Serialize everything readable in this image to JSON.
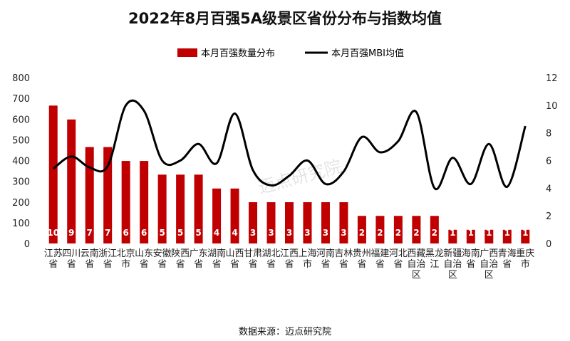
{
  "chart_data": {
    "type": "bar+line",
    "title": "2022年8月百强5A级景区省份分布与指数均值",
    "source": "数据来源：迈点研究院",
    "watermark": "迈点研究院",
    "bar_color": "#c00000",
    "line_color": "#000000",
    "legend": [
      "本月百强数量分布",
      "本月百强MBI均值"
    ],
    "y_left": {
      "ticks": [
        0,
        100,
        200,
        300,
        400,
        500,
        600,
        700,
        800
      ],
      "range": [
        0,
        800
      ]
    },
    "y_right": {
      "ticks": [
        0,
        2,
        4,
        6,
        8,
        10,
        12
      ],
      "range": [
        0,
        12
      ]
    },
    "categories": [
      "江苏省",
      "四川省",
      "云南省",
      "浙江省",
      "北京市",
      "山东省",
      "安徽省",
      "陕西省",
      "广东省",
      "湖南省",
      "山西省",
      "甘肃省",
      "湖北省",
      "江西省",
      "上海市",
      "河南省",
      "吉林省",
      "贵州省",
      "福建省",
      "河北省",
      "西藏自治区",
      "黑龙江",
      "新疆自治区",
      "海南省",
      "广西自治区",
      "青海省",
      "重庆市"
    ],
    "counts": [
      10,
      9,
      7,
      7,
      6,
      6,
      5,
      5,
      5,
      4,
      4,
      3,
      3,
      3,
      3,
      3,
      3,
      2,
      2,
      2,
      2,
      2,
      1,
      1,
      1,
      1,
      1
    ],
    "count_labels": [
      "10",
      "9",
      "7",
      "7",
      "6",
      "6",
      "5",
      "5",
      "5",
      "4",
      "4",
      "3",
      "3",
      "3",
      "3",
      "3",
      "3",
      "2",
      "2",
      "2",
      "2",
      "2",
      "1",
      "1",
      "1",
      "1",
      "1"
    ],
    "bar_values": [
      665,
      598,
      465,
      465,
      398,
      398,
      332,
      332,
      332,
      265,
      265,
      199,
      199,
      199,
      199,
      199,
      199,
      133,
      133,
      133,
      133,
      133,
      66,
      66,
      66,
      66,
      66
    ],
    "mbi_values": [
      5.4,
      6.3,
      5.5,
      5.6,
      10.0,
      9.6,
      6.0,
      6.0,
      7.2,
      5.8,
      9.4,
      5.3,
      4.2,
      4.9,
      6.0,
      4.3,
      5.2,
      7.7,
      6.6,
      7.4,
      9.5,
      4.0,
      6.2,
      4.3,
      7.2,
      4.1,
      8.5
    ]
  }
}
